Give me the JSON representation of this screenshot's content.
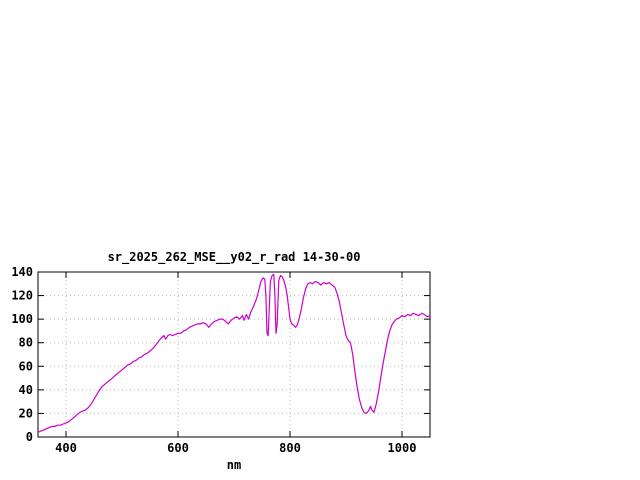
{
  "chart_data": {
    "type": "line",
    "title": "sr_2025_262_MSE__y02_r_rad 14-30-00",
    "xlabel": "nm",
    "ylabel": "",
    "xlim": [
      350,
      1050
    ],
    "ylim": [
      0,
      140
    ],
    "xticks": [
      400,
      600,
      800,
      1000
    ],
    "yticks": [
      0,
      20,
      40,
      60,
      80,
      100,
      120,
      140
    ],
    "grid": true,
    "legend": "none",
    "line_color": "#cc00cc",
    "grid_color": "#bbbbbb",
    "axis_color": "#000000",
    "series": [
      {
        "name": "sr_2025_262_MSE__y02_r_rad",
        "points": [
          [
            350,
            4
          ],
          [
            355,
            5
          ],
          [
            360,
            6
          ],
          [
            365,
            7
          ],
          [
            370,
            8
          ],
          [
            375,
            9
          ],
          [
            380,
            9
          ],
          [
            385,
            10
          ],
          [
            390,
            10
          ],
          [
            395,
            11
          ],
          [
            400,
            12
          ],
          [
            405,
            13
          ],
          [
            410,
            15
          ],
          [
            415,
            17
          ],
          [
            420,
            19
          ],
          [
            425,
            21
          ],
          [
            430,
            22
          ],
          [
            435,
            23
          ],
          [
            440,
            25
          ],
          [
            445,
            28
          ],
          [
            450,
            32
          ],
          [
            455,
            36
          ],
          [
            460,
            40
          ],
          [
            465,
            43
          ],
          [
            470,
            45
          ],
          [
            475,
            47
          ],
          [
            480,
            49
          ],
          [
            485,
            51
          ],
          [
            490,
            53
          ],
          [
            495,
            55
          ],
          [
            500,
            57
          ],
          [
            505,
            59
          ],
          [
            510,
            61
          ],
          [
            515,
            62
          ],
          [
            520,
            64
          ],
          [
            525,
            65
          ],
          [
            530,
            67
          ],
          [
            535,
            68
          ],
          [
            540,
            70
          ],
          [
            545,
            71
          ],
          [
            550,
            73
          ],
          [
            555,
            75
          ],
          [
            560,
            78
          ],
          [
            565,
            81
          ],
          [
            570,
            84
          ],
          [
            575,
            86
          ],
          [
            578,
            83
          ],
          [
            582,
            86
          ],
          [
            586,
            87
          ],
          [
            590,
            86
          ],
          [
            595,
            87
          ],
          [
            600,
            88
          ],
          [
            605,
            88
          ],
          [
            610,
            90
          ],
          [
            615,
            91
          ],
          [
            620,
            93
          ],
          [
            625,
            94
          ],
          [
            630,
            95
          ],
          [
            635,
            96
          ],
          [
            640,
            96
          ],
          [
            645,
            97
          ],
          [
            650,
            96
          ],
          [
            655,
            93
          ],
          [
            660,
            96
          ],
          [
            665,
            98
          ],
          [
            670,
            99
          ],
          [
            675,
            100
          ],
          [
            680,
            100
          ],
          [
            685,
            98
          ],
          [
            690,
            96
          ],
          [
            695,
            99
          ],
          [
            700,
            101
          ],
          [
            705,
            102
          ],
          [
            710,
            100
          ],
          [
            715,
            103
          ],
          [
            718,
            99
          ],
          [
            722,
            104
          ],
          [
            726,
            100
          ],
          [
            730,
            106
          ],
          [
            735,
            111
          ],
          [
            740,
            117
          ],
          [
            745,
            126
          ],
          [
            748,
            132
          ],
          [
            752,
            135
          ],
          [
            755,
            134
          ],
          [
            757,
            120
          ],
          [
            759,
            88
          ],
          [
            761,
            86
          ],
          [
            763,
            110
          ],
          [
            765,
            132
          ],
          [
            768,
            137
          ],
          [
            771,
            138
          ],
          [
            773,
            120
          ],
          [
            775,
            88
          ],
          [
            777,
            95
          ],
          [
            780,
            133
          ],
          [
            783,
            137
          ],
          [
            786,
            136
          ],
          [
            789,
            133
          ],
          [
            792,
            128
          ],
          [
            795,
            120
          ],
          [
            798,
            108
          ],
          [
            800,
            100
          ],
          [
            803,
            96
          ],
          [
            806,
            95
          ],
          [
            810,
            93
          ],
          [
            813,
            95
          ],
          [
            816,
            100
          ],
          [
            820,
            108
          ],
          [
            824,
            118
          ],
          [
            828,
            126
          ],
          [
            832,
            130
          ],
          [
            836,
            131
          ],
          [
            840,
            130
          ],
          [
            845,
            132
          ],
          [
            850,
            131
          ],
          [
            855,
            129
          ],
          [
            860,
            131
          ],
          [
            865,
            130
          ],
          [
            870,
            131
          ],
          [
            875,
            129
          ],
          [
            880,
            127
          ],
          [
            884,
            122
          ],
          [
            888,
            115
          ],
          [
            892,
            105
          ],
          [
            896,
            95
          ],
          [
            900,
            86
          ],
          [
            904,
            82
          ],
          [
            908,
            80
          ],
          [
            912,
            70
          ],
          [
            916,
            55
          ],
          [
            920,
            42
          ],
          [
            924,
            32
          ],
          [
            928,
            25
          ],
          [
            932,
            21
          ],
          [
            936,
            20
          ],
          [
            940,
            22
          ],
          [
            944,
            26
          ],
          [
            946,
            23
          ],
          [
            950,
            21
          ],
          [
            954,
            28
          ],
          [
            958,
            38
          ],
          [
            962,
            50
          ],
          [
            966,
            62
          ],
          [
            970,
            72
          ],
          [
            974,
            82
          ],
          [
            978,
            90
          ],
          [
            982,
            95
          ],
          [
            986,
            98
          ],
          [
            990,
            100
          ],
          [
            995,
            101
          ],
          [
            1000,
            103
          ],
          [
            1005,
            102
          ],
          [
            1010,
            104
          ],
          [
            1015,
            103
          ],
          [
            1020,
            105
          ],
          [
            1025,
            104
          ],
          [
            1030,
            103
          ],
          [
            1035,
            105
          ],
          [
            1040,
            104
          ],
          [
            1045,
            102
          ],
          [
            1050,
            103
          ]
        ]
      }
    ]
  }
}
